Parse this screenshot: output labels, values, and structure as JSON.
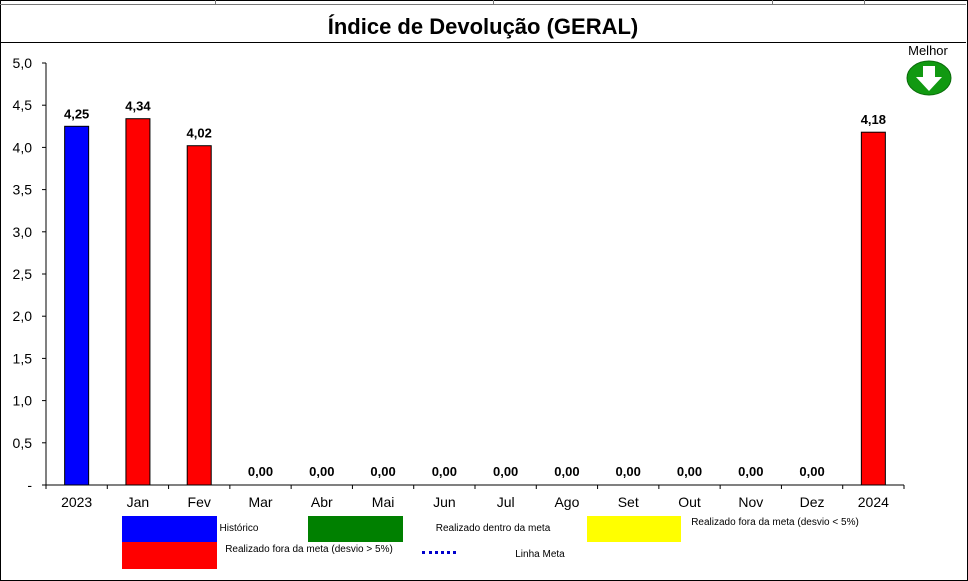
{
  "title": "Índice de Devolução (GERAL)",
  "best_direction": {
    "label": "Melhor",
    "icon": "down-arrow-icon"
  },
  "chart_data": {
    "type": "bar",
    "categories": [
      "2023",
      "Jan",
      "Fev",
      "Mar",
      "Abr",
      "Mai",
      "Jun",
      "Jul",
      "Ago",
      "Set",
      "Out",
      "Nov",
      "Dez",
      "2024"
    ],
    "values": [
      4.25,
      4.34,
      4.02,
      0,
      0,
      0,
      0,
      0,
      0,
      0,
      0,
      0,
      0,
      4.18
    ],
    "value_labels": [
      "4,25",
      "4,34",
      "4,02",
      "0,00",
      "0,00",
      "0,00",
      "0,00",
      "0,00",
      "0,00",
      "0,00",
      "0,00",
      "0,00",
      "0,00",
      "4,18"
    ],
    "bar_colors": [
      "#0000ff",
      "#ff0000",
      "#ff0000",
      "#ff0000",
      "#ff0000",
      "#ff0000",
      "#ff0000",
      "#ff0000",
      "#ff0000",
      "#ff0000",
      "#ff0000",
      "#ff0000",
      "#ff0000",
      "#ff0000"
    ],
    "ylim": [
      0,
      5
    ],
    "yticks": [
      0,
      0.5,
      1,
      1.5,
      2,
      2.5,
      3,
      3.5,
      4,
      4.5,
      5
    ],
    "ytick_labels": [
      "-",
      "0,5",
      "1,0",
      "1,5",
      "2,0",
      "2,5",
      "3,0",
      "3,5",
      "4,0",
      "4,5",
      "5,0"
    ],
    "grid": false
  },
  "legend": {
    "historico": {
      "label": "Histórico",
      "color": "#0000ff"
    },
    "dentro_meta": {
      "label": "Realizado dentro da meta",
      "color": "#008000"
    },
    "fora_meta_menor": {
      "label": "Realizado fora da meta (desvio < 5%)",
      "color": "#ffff00"
    },
    "fora_meta_maior": {
      "label": "Realizado fora da meta (desvio > 5%)",
      "color": "#ff0000"
    },
    "linha_meta": {
      "label": "Linha Meta",
      "color": "#0000cc"
    }
  }
}
